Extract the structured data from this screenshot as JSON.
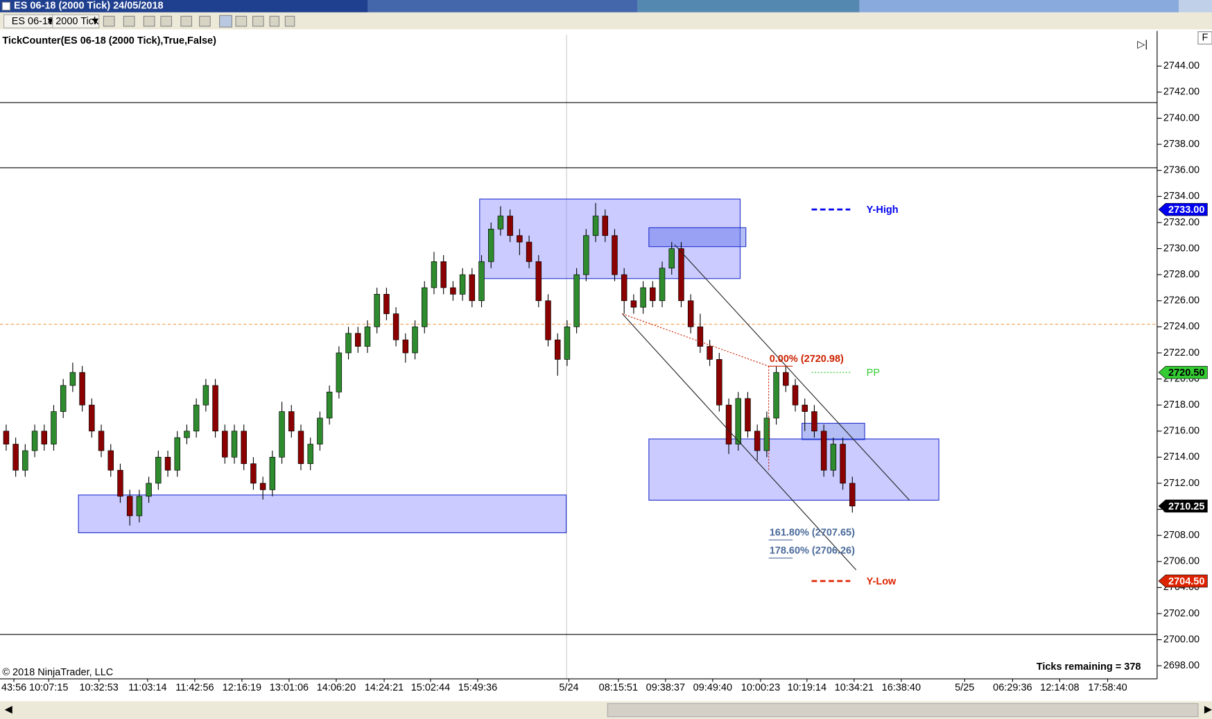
{
  "window": {
    "title": "ES 06-18 (2000 Tick)  24/05/2018"
  },
  "toolbar": {
    "instrument": "ES 06-18",
    "interval": "2000 Tick"
  },
  "chart": {
    "type": "candlestick",
    "indicator_label": "TickCounter(ES 06-18 (2000 Tick),True,False)",
    "ylim": [
      2697,
      2746.4
    ],
    "yticks": [
      {
        "value": 2744,
        "label": "2744.00"
      },
      {
        "value": 2742,
        "label": "2742.00"
      },
      {
        "value": 2740,
        "label": "2740.00"
      },
      {
        "value": 2738,
        "label": "2738.00"
      },
      {
        "value": 2736,
        "label": "2736.00"
      },
      {
        "value": 2734,
        "label": "2734.00"
      },
      {
        "value": 2732,
        "label": "2732.00"
      },
      {
        "value": 2730,
        "label": "2730.00"
      },
      {
        "value": 2728,
        "label": "2728.00"
      },
      {
        "value": 2726,
        "label": "2726.00"
      },
      {
        "value": 2724,
        "label": "2724.00"
      },
      {
        "value": 2722,
        "label": "2722.00"
      },
      {
        "value": 2720,
        "label": "2720.00"
      },
      {
        "value": 2718,
        "label": "2718.00"
      },
      {
        "value": 2716,
        "label": "2716.00"
      },
      {
        "value": 2714,
        "label": "2714.00"
      },
      {
        "value": 2712,
        "label": "2712.00"
      },
      {
        "value": 2710,
        "label": "2710.00"
      },
      {
        "value": 2708,
        "label": "2708.00"
      },
      {
        "value": 2706,
        "label": "2706.00"
      },
      {
        "value": 2704,
        "label": "2704.00"
      },
      {
        "value": 2702,
        "label": "2702.00"
      },
      {
        "value": 2700,
        "label": "2700.00"
      },
      {
        "value": 2698,
        "label": "2698.00"
      }
    ],
    "xlabels": [
      "43:56",
      "10:07:15",
      "10:32:53",
      "11:03:14",
      "11:42:56",
      "12:16:19",
      "13:01:06",
      "14:06:20",
      "14:24:21",
      "15:02:44",
      "15:49:36",
      "5/24",
      "08:15:51",
      "09:38:37",
      "09:49:40",
      "10:00:23",
      "10:19:14",
      "10:34:21",
      "16:38:40",
      "5/25",
      "06:29:36",
      "12:14:08",
      "17:58:40"
    ],
    "up_color": "#2e8b2e",
    "down_color": "#8b0000",
    "candles": [
      [
        2716,
        2716.5,
        2714.5,
        2715
      ],
      [
        2715,
        2715.5,
        2712.5,
        2713
      ],
      [
        2713,
        2715,
        2712.5,
        2714.5
      ],
      [
        2714.5,
        2716.5,
        2714,
        2716
      ],
      [
        2716,
        2716.5,
        2714.5,
        2715
      ],
      [
        2715,
        2718,
        2714.5,
        2717.5
      ],
      [
        2717.5,
        2720,
        2717,
        2719.5
      ],
      [
        2719.5,
        2721.25,
        2719,
        2720.5
      ],
      [
        2720.5,
        2721,
        2717.5,
        2718
      ],
      [
        2718,
        2718.5,
        2715.5,
        2716
      ],
      [
        2716,
        2716.5,
        2714,
        2714.5
      ],
      [
        2714.5,
        2715,
        2712.5,
        2713
      ],
      [
        2713,
        2713.5,
        2710.5,
        2711
      ],
      [
        2711,
        2711.5,
        2708.75,
        2709.5
      ],
      [
        2709.5,
        2711.5,
        2709,
        2711
      ],
      [
        2711,
        2712.5,
        2710.5,
        2712
      ],
      [
        2712,
        2714.5,
        2711.5,
        2714
      ],
      [
        2714,
        2714.5,
        2712.5,
        2713
      ],
      [
        2713,
        2716,
        2712.5,
        2715.5
      ],
      [
        2715.5,
        2716.5,
        2715,
        2716
      ],
      [
        2716,
        2718.5,
        2715.5,
        2718
      ],
      [
        2718,
        2720,
        2717.5,
        2719.5
      ],
      [
        2719.5,
        2720,
        2715.5,
        2716
      ],
      [
        2716,
        2716.5,
        2713.5,
        2714
      ],
      [
        2714,
        2716.5,
        2713.5,
        2716
      ],
      [
        2716,
        2716.5,
        2713,
        2713.5
      ],
      [
        2713.5,
        2714,
        2711.5,
        2712
      ],
      [
        2712,
        2712.5,
        2710.75,
        2711.5
      ],
      [
        2711.5,
        2714.5,
        2711,
        2714
      ],
      [
        2714,
        2718.25,
        2713.5,
        2717.5
      ],
      [
        2717.5,
        2718,
        2715.5,
        2716
      ],
      [
        2716,
        2716.5,
        2713,
        2713.5
      ],
      [
        2713.5,
        2715.5,
        2713,
        2715
      ],
      [
        2715,
        2717.5,
        2714.5,
        2717
      ],
      [
        2717,
        2719.5,
        2716.5,
        2719
      ],
      [
        2719,
        2722.5,
        2718.5,
        2722
      ],
      [
        2722,
        2724,
        2721.5,
        2723.5
      ],
      [
        2723.5,
        2724,
        2722,
        2722.5
      ],
      [
        2722.5,
        2724.5,
        2722,
        2724
      ],
      [
        2724,
        2727,
        2723.5,
        2726.5
      ],
      [
        2726.5,
        2727,
        2724.5,
        2725
      ],
      [
        2725,
        2725.5,
        2722.5,
        2723
      ],
      [
        2723,
        2723.5,
        2721.25,
        2722
      ],
      [
        2722,
        2724.5,
        2721.5,
        2724
      ],
      [
        2724,
        2727.5,
        2723.5,
        2727
      ],
      [
        2727,
        2729.75,
        2726.5,
        2729
      ],
      [
        2729,
        2729.5,
        2726.5,
        2727
      ],
      [
        2727,
        2727.5,
        2726,
        2726.5
      ],
      [
        2726.5,
        2728.5,
        2726,
        2728
      ],
      [
        2728,
        2728.5,
        2725.5,
        2726
      ],
      [
        2726,
        2729.5,
        2725.5,
        2729
      ],
      [
        2729,
        2732,
        2728.5,
        2731.5
      ],
      [
        2731.5,
        2733.25,
        2731,
        2732.5
      ],
      [
        2732.5,
        2733,
        2730.5,
        2731
      ],
      [
        2731,
        2731.5,
        2729.5,
        2730.5
      ],
      [
        2730.5,
        2731,
        2728.5,
        2729
      ],
      [
        2729,
        2729.5,
        2725.5,
        2726
      ],
      [
        2726,
        2726.5,
        2722.5,
        2723
      ],
      [
        2723,
        2723.5,
        2720.25,
        2721.5
      ],
      [
        2721.5,
        2724.5,
        2721,
        2724
      ],
      [
        2724,
        2728.5,
        2723.5,
        2728
      ],
      [
        2728,
        2731.5,
        2727.5,
        2731
      ],
      [
        2731,
        2733.5,
        2730.5,
        2732.5
      ],
      [
        2732.5,
        2733,
        2730.5,
        2731
      ],
      [
        2731,
        2731.5,
        2727.5,
        2728
      ],
      [
        2728,
        2728.5,
        2725,
        2726
      ],
      [
        2726,
        2726.5,
        2725,
        2725.5
      ],
      [
        2725.5,
        2727.5,
        2725,
        2727
      ],
      [
        2727,
        2727.5,
        2725.5,
        2726
      ],
      [
        2726,
        2729,
        2725.5,
        2728.5
      ],
      [
        2728.5,
        2730.5,
        2728,
        2730
      ],
      [
        2730,
        2730.5,
        2725.5,
        2726
      ],
      [
        2726,
        2726.5,
        2723.5,
        2724
      ],
      [
        2724,
        2725,
        2722,
        2722.5
      ],
      [
        2722.5,
        2723,
        2721,
        2721.5
      ],
      [
        2721.5,
        2722,
        2717.5,
        2718
      ],
      [
        2718,
        2718.5,
        2714.25,
        2715
      ],
      [
        2715,
        2719,
        2714.5,
        2718.5
      ],
      [
        2718.5,
        2719,
        2715.5,
        2716
      ],
      [
        2716,
        2716.5,
        2713.75,
        2714.5
      ],
      [
        2714.5,
        2717.5,
        2714,
        2717
      ],
      [
        2717,
        2721,
        2716.5,
        2720.5
      ],
      [
        2720.5,
        2721,
        2719,
        2719.5
      ],
      [
        2719.5,
        2720,
        2717.5,
        2718
      ],
      [
        2718,
        2718.5,
        2716,
        2717.5
      ],
      [
        2717.5,
        2718,
        2715.5,
        2716
      ],
      [
        2716,
        2716.5,
        2712.5,
        2713
      ],
      [
        2713,
        2715.5,
        2712.5,
        2715
      ],
      [
        2715,
        2715.5,
        2711.5,
        2712
      ],
      [
        2712,
        2712.5,
        2709.75,
        2710.25
      ]
    ],
    "zones": [
      {
        "from": 49.8,
        "to": 77.2,
        "top": 2733.8,
        "bottom": 2727.7
      },
      {
        "from": 67.6,
        "to": 77.8,
        "top": 2731.6,
        "bottom": 2730.15
      },
      {
        "from": 7.6,
        "to": 58.9,
        "top": 2711.1,
        "bottom": 2708.2
      },
      {
        "from": 67.6,
        "to": 98.1,
        "top": 2715.4,
        "bottom": 2710.7
      },
      {
        "from": 83.7,
        "to": 90.3,
        "top": 2716.6,
        "bottom": 2715.35
      }
    ],
    "hlines": [
      2741.2,
      2736.2,
      2700.4
    ],
    "orange_line": 2724.2,
    "channel": [
      [
        [
          70.3,
          2730.3
        ],
        [
          95,
          2710.7
        ]
      ],
      [
        [
          64.8,
          2725
        ],
        [
          89.4,
          2705.35
        ]
      ]
    ],
    "fib": {
      "anchor": [
        [
          64.8,
          2725
        ],
        [
          80.2,
          2720.98
        ]
      ],
      "base": 2712.9,
      "levels": [
        {
          "value": 2720.98,
          "label": "0.00% (2720.98)",
          "color": "#cc2200"
        },
        {
          "value": 2707.65,
          "label": "161.80% (2707.65)",
          "color": "#4a6a9a"
        },
        {
          "value": 2706.26,
          "label": "178.60% (2706.26)",
          "color": "#4a6a9a"
        }
      ]
    },
    "levels": [
      {
        "name": "Y-High",
        "value": 2733,
        "label": "2733.00",
        "color": "#0000ee"
      },
      {
        "name": "PP",
        "value": 2720.5,
        "label": "2720.50",
        "color": "#33cc33"
      },
      {
        "name": "Y-Low",
        "value": 2704.5,
        "label": "2704.50",
        "color": "#dd2200"
      }
    ],
    "last_price": {
      "value": 2710.25,
      "label": "2710.25"
    },
    "copyright": "© 2018 NinjaTrader, LLC",
    "ticks_remaining": "Ticks remaining = 378"
  }
}
